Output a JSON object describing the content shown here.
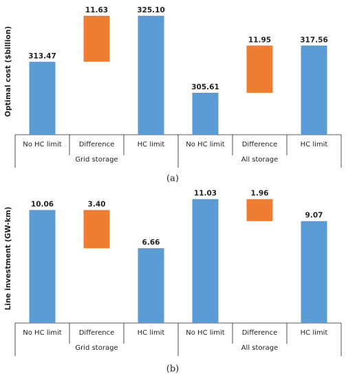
{
  "chart_data": [
    {
      "type": "waterfall",
      "ylabel": "Optimal cost ($billion)",
      "caption": "(a)",
      "categories": [
        "No HC limit",
        "Difference",
        "HC limit",
        "No HC limit",
        "Difference",
        "HC limit"
      ],
      "groups": [
        "Grid storage",
        "All storage"
      ],
      "values": [
        313.47,
        11.63,
        325.1,
        305.61,
        11.95,
        317.56
      ],
      "value_labels": [
        "313.47",
        "11.63",
        "325.10",
        "305.61",
        "11.95",
        "317.56"
      ],
      "colors": [
        "#5b9bd5",
        "#ed7d31",
        "#5b9bd5",
        "#5b9bd5",
        "#ed7d31",
        "#5b9bd5"
      ],
      "ylim": [
        295,
        327
      ]
    },
    {
      "type": "waterfall",
      "ylabel": "Line investment (GW-km)",
      "caption": "(b)",
      "categories": [
        "No HC limit",
        "Difference",
        "HC limit",
        "No HC limit",
        "Difference",
        "HC limit"
      ],
      "groups": [
        "Grid storage",
        "All storage"
      ],
      "values": [
        10.06,
        3.4,
        6.66,
        11.03,
        1.96,
        9.07
      ],
      "value_labels": [
        "10.06",
        "3.40",
        "6.66",
        "11.03",
        "1.96",
        "9.07"
      ],
      "colors": [
        "#5b9bd5",
        "#ed7d31",
        "#5b9bd5",
        "#5b9bd5",
        "#ed7d31",
        "#5b9bd5"
      ],
      "ylim": [
        0,
        11.5
      ]
    }
  ]
}
